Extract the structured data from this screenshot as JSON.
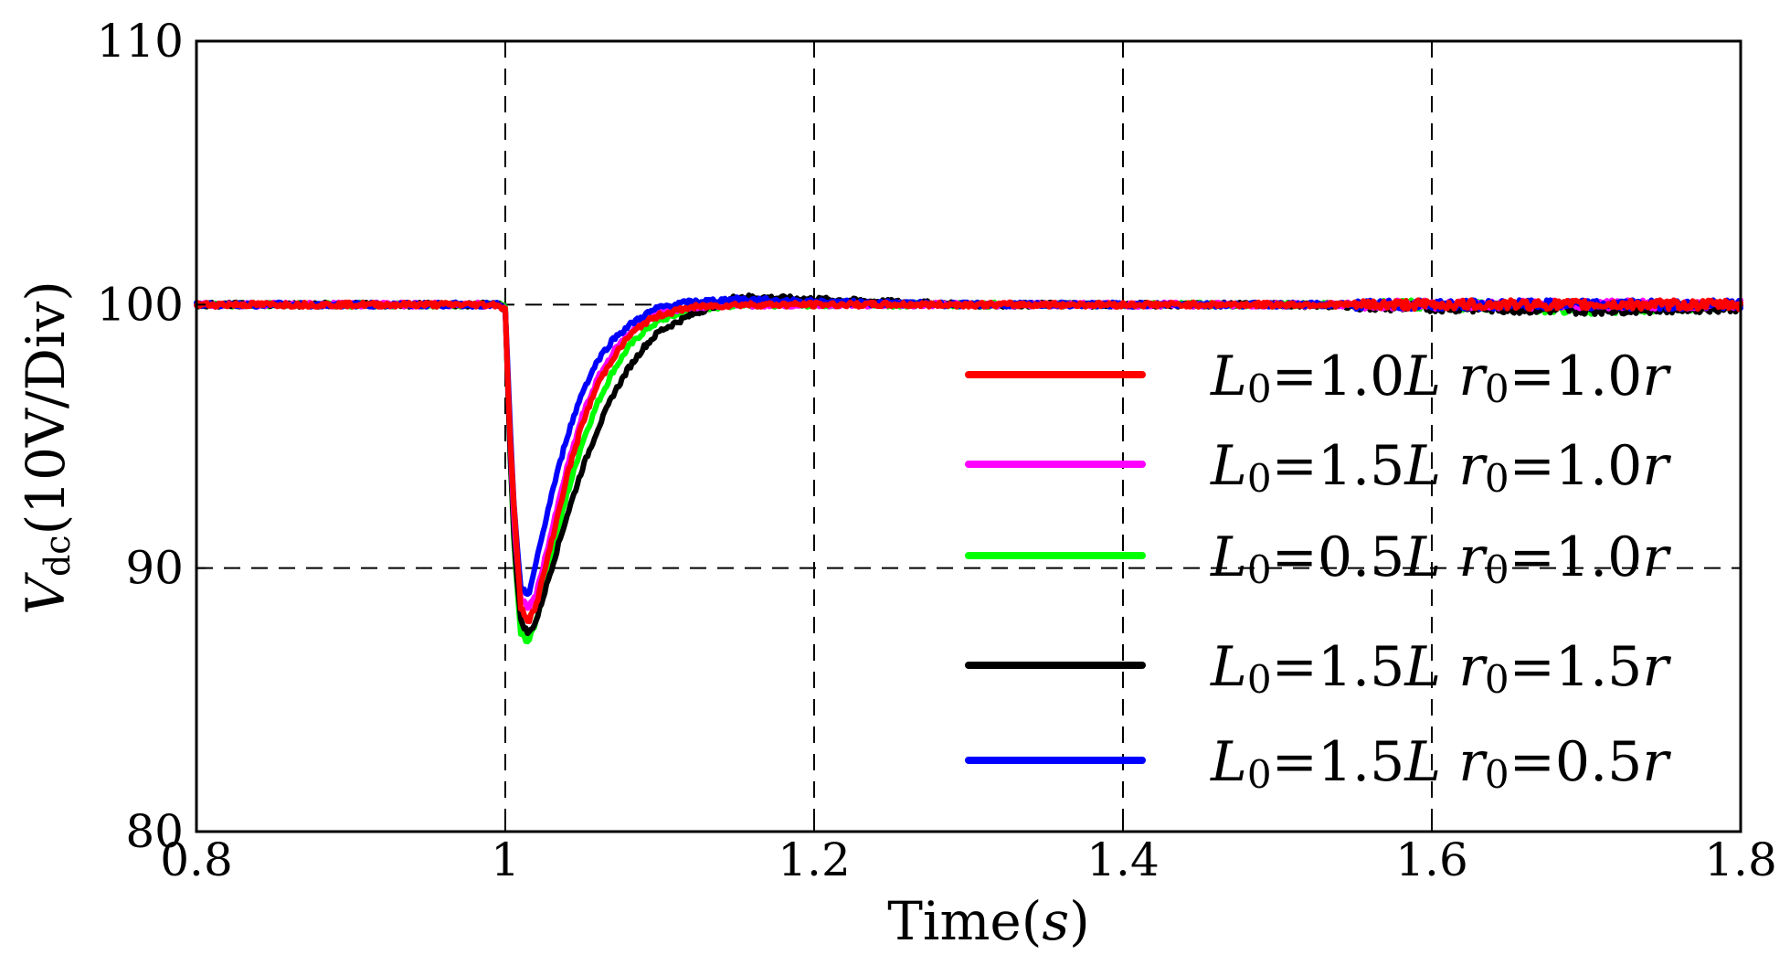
{
  "chart_data": {
    "type": "line",
    "xlabel": "Time(s)",
    "ylabel": "Vdc(10V/Div)",
    "ylabel_parts": {
      "main": "V",
      "sub": "dc",
      "rest": "(10V/Div)"
    },
    "xlabel_parts": {
      "main": "Time(",
      "italic": "s",
      "rest": ")"
    },
    "xlim": [
      0.8,
      1.8
    ],
    "ylim": [
      80,
      110
    ],
    "xticks": [
      "0.8",
      "1",
      "1.2",
      "1.4",
      "1.6",
      "1.8"
    ],
    "xtick_values": [
      0.8,
      1.0,
      1.2,
      1.4,
      1.6,
      1.8
    ],
    "yticks": [
      "80",
      "90",
      "100",
      "110"
    ],
    "ytick_values": [
      80,
      90,
      100,
      110
    ],
    "grid_x": [
      1.0,
      1.2,
      1.4,
      1.6
    ],
    "grid_y": [
      90,
      100
    ],
    "legend_position": "right",
    "series": [
      {
        "name": "L0=1.0L r0=1.0r",
        "label_parts": [
          "L",
          "0",
          "=1.0",
          "L",
          " r",
          "0",
          "=1.0",
          "r"
        ],
        "color": "#ff0000",
        "x": [
          0.8,
          0.9,
          0.995,
          1.0,
          1.003,
          1.006,
          1.01,
          1.015,
          1.02,
          1.03,
          1.04,
          1.05,
          1.06,
          1.07,
          1.08,
          1.09,
          1.1,
          1.12,
          1.15,
          1.2,
          1.3,
          1.4,
          1.5,
          1.6,
          1.7,
          1.8
        ],
        "y": [
          100,
          100,
          100,
          99.8,
          95,
          92,
          88.5,
          88,
          88.6,
          91,
          93.5,
          95.5,
          97,
          98,
          98.8,
          99.3,
          99.6,
          99.9,
          100,
          100,
          100,
          100,
          100,
          100,
          100,
          100
        ]
      },
      {
        "name": "L0=1.5L r0=1.0r",
        "label_parts": [
          "L",
          "0",
          "=1.5",
          "L",
          " r",
          "0",
          "=1.0",
          "r"
        ],
        "color": "#ff00ff",
        "x": [
          0.8,
          0.9,
          0.995,
          1.0,
          1.003,
          1.006,
          1.01,
          1.015,
          1.02,
          1.03,
          1.04,
          1.05,
          1.06,
          1.07,
          1.08,
          1.09,
          1.1,
          1.12,
          1.15,
          1.2,
          1.3,
          1.4,
          1.5,
          1.6,
          1.7,
          1.8
        ],
        "y": [
          100,
          100,
          100,
          99.8,
          95,
          91.5,
          88.8,
          88.5,
          89,
          91.4,
          93.8,
          95.8,
          97.2,
          98.2,
          98.9,
          99.4,
          99.7,
          99.9,
          100,
          100,
          100,
          100,
          100,
          100,
          100,
          100
        ]
      },
      {
        "name": "L0=0.5L r0=1.0r",
        "label_parts": [
          "L",
          "0",
          "=0.5",
          "L",
          " r",
          "0",
          "=1.0",
          "r"
        ],
        "color": "#00ff00",
        "x": [
          0.8,
          0.9,
          0.995,
          1.0,
          1.003,
          1.006,
          1.01,
          1.015,
          1.02,
          1.03,
          1.04,
          1.05,
          1.06,
          1.07,
          1.08,
          1.09,
          1.1,
          1.12,
          1.15,
          1.2,
          1.3,
          1.4,
          1.5,
          1.6,
          1.7,
          1.8
        ],
        "y": [
          100,
          100,
          100,
          99.9,
          94.5,
          90.5,
          87.5,
          87.2,
          88,
          90.5,
          92.8,
          94.8,
          96.3,
          97.5,
          98.4,
          99.0,
          99.4,
          99.8,
          100,
          100,
          100,
          100,
          100,
          100,
          99.8,
          100
        ]
      },
      {
        "name": "L0=1.5L r0=1.5r",
        "label_parts": [
          "L",
          "0",
          "=1.5",
          "L",
          " r",
          "0",
          "=1.5",
          "r"
        ],
        "color": "#000000",
        "x": [
          0.8,
          0.9,
          0.995,
          1.0,
          1.003,
          1.006,
          1.01,
          1.015,
          1.02,
          1.03,
          1.04,
          1.05,
          1.06,
          1.07,
          1.08,
          1.09,
          1.1,
          1.12,
          1.15,
          1.2,
          1.3,
          1.4,
          1.5,
          1.6,
          1.7,
          1.8
        ],
        "y": [
          100,
          100,
          100,
          99.8,
          94.5,
          90.8,
          88,
          87.5,
          88,
          90,
          92,
          93.8,
          95.3,
          96.6,
          97.6,
          98.4,
          99.0,
          99.6,
          100.3,
          100.2,
          100,
          100,
          100,
          99.9,
          99.8,
          99.9
        ]
      },
      {
        "name": "L0=1.5L r0=0.5r",
        "label_parts": [
          "L",
          "0",
          "=1.5",
          "L",
          " r",
          "0",
          "=0.5",
          "r"
        ],
        "color": "#0000ff",
        "x": [
          0.8,
          0.9,
          0.995,
          1.0,
          1.003,
          1.006,
          1.01,
          1.015,
          1.02,
          1.03,
          1.04,
          1.05,
          1.06,
          1.07,
          1.08,
          1.09,
          1.1,
          1.12,
          1.15,
          1.2,
          1.3,
          1.4,
          1.5,
          1.6,
          1.7,
          1.8
        ],
        "y": [
          100,
          100,
          100,
          99.8,
          95.5,
          92,
          89.2,
          89,
          90.2,
          92.8,
          95,
          96.7,
          97.9,
          98.7,
          99.2,
          99.6,
          99.9,
          100.1,
          100.2,
          100.1,
          100,
          100,
          100,
          100,
          100,
          100
        ]
      }
    ]
  }
}
